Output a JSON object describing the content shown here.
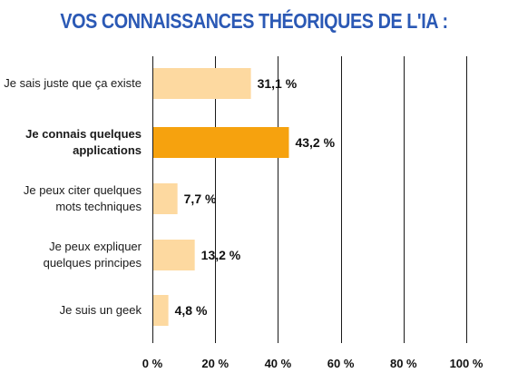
{
  "chart_data": {
    "type": "bar",
    "orientation": "horizontal",
    "title": "VOS CONNAISSANCES THÉORIQUES DE L'IA :",
    "categories": [
      [
        "Je sais juste que ça existe"
      ],
      [
        "Je connais quelques",
        "applications"
      ],
      [
        "Je peux citer quelques",
        "mots techniques"
      ],
      [
        "Je peux expliquer",
        "quelques principes"
      ],
      [
        "Je suis un geek"
      ]
    ],
    "values": [
      31.1,
      43.2,
      7.7,
      13.2,
      4.8
    ],
    "value_labels": [
      "31,1 %",
      "43,2 %",
      "7,7 %",
      "13,2 %",
      "4,8 %"
    ],
    "highlight_index": 1,
    "xlim": [
      0,
      100
    ],
    "xticks": [
      0,
      20,
      40,
      60,
      80,
      100
    ],
    "xtick_labels": [
      "0 %",
      "20 %",
      "40 %",
      "60 %",
      "80 %",
      "100 %"
    ],
    "grid": "vertical",
    "colors": {
      "title": "#2b59b5",
      "bar": "#fdd9a0",
      "bar_highlight": "#f6a20e",
      "grid": "#1a1a1a"
    }
  }
}
